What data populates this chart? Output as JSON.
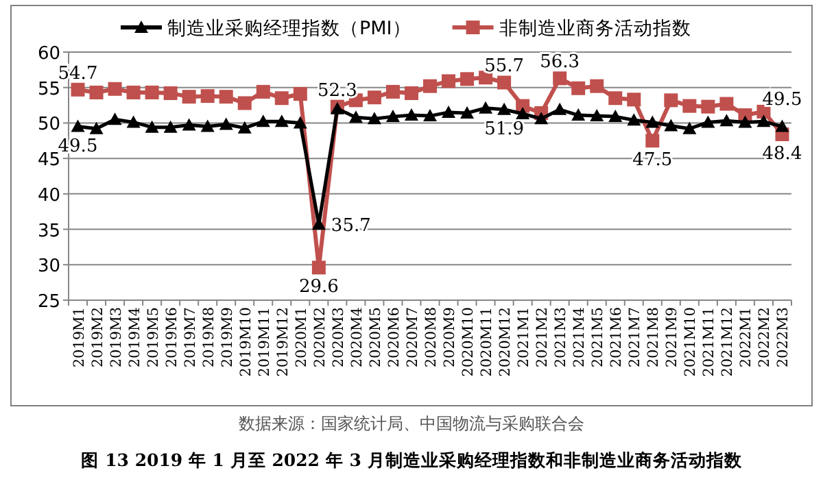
{
  "chart_data": {
    "type": "line",
    "title": "**图 13  2019 年 1 月至 2022 年 3 月制造业采购经理指数和非制造业商务活动指数**",
    "annotations": [
      "数据来源：国家统计局、中国物流与采购联合会"
    ],
    "categories": [
      "2019M1",
      "2019M2",
      "2019M3",
      "2019M4",
      "2019M5",
      "2019M6",
      "2019M7",
      "2019M8",
      "2019M9",
      "2019M10",
      "2019M11",
      "2019M12",
      "2020M1",
      "2020M2",
      "2020M3",
      "2020M4",
      "2020M5",
      "2020M6",
      "2020M7",
      "2020M8",
      "2020M9",
      "2020M10",
      "2020M11",
      "2020M12",
      "2021M1",
      "2021M2",
      "2021M3",
      "2021M4",
      "2021M5",
      "2021M6",
      "2021M7",
      "2021M8",
      "2021M9",
      "2021M10",
      "2021M11",
      "2021M12",
      "2022M1",
      "2022M2",
      "2022M3"
    ],
    "series": [
      {
        "name": "制造业采购经理指数（PMI）",
        "color": "#000000",
        "marker": "triangle",
        "values": [
          49.5,
          49.2,
          50.5,
          50.1,
          49.4,
          49.4,
          49.7,
          49.5,
          49.8,
          49.3,
          50.2,
          50.2,
          50.0,
          35.7,
          52.0,
          50.8,
          50.6,
          50.9,
          51.1,
          51.0,
          51.5,
          51.4,
          52.1,
          51.9,
          51.3,
          50.6,
          51.9,
          51.1,
          51.0,
          50.9,
          50.4,
          50.1,
          49.6,
          49.2,
          50.1,
          50.3,
          50.1,
          50.2,
          49.5
        ],
        "value_labels": [
          "49.5",
          null,
          null,
          null,
          null,
          null,
          null,
          null,
          null,
          null,
          null,
          null,
          null,
          "35.7",
          null,
          null,
          null,
          null,
          null,
          null,
          null,
          null,
          null,
          "51.9",
          null,
          null,
          null,
          null,
          null,
          null,
          null,
          null,
          null,
          null,
          null,
          null,
          null,
          null,
          "49.5"
        ]
      },
      {
        "name": "非制造业商务活动指数",
        "color": "#c0504d",
        "marker": "square",
        "values": [
          54.7,
          54.3,
          54.8,
          54.3,
          54.3,
          54.2,
          53.7,
          53.8,
          53.7,
          52.8,
          54.4,
          53.5,
          54.1,
          29.6,
          52.3,
          53.2,
          53.6,
          54.4,
          54.2,
          55.2,
          55.9,
          56.2,
          56.4,
          55.7,
          52.4,
          51.4,
          56.3,
          54.9,
          55.2,
          53.5,
          53.3,
          47.5,
          53.2,
          52.4,
          52.3,
          52.7,
          51.1,
          51.6,
          48.4
        ],
        "value_labels": [
          "54.7",
          null,
          null,
          null,
          null,
          null,
          null,
          null,
          null,
          null,
          null,
          null,
          null,
          "29.6",
          "52.3",
          null,
          null,
          null,
          null,
          null,
          null,
          null,
          null,
          "55.7",
          null,
          null,
          "56.3",
          null,
          null,
          null,
          null,
          "47.5",
          null,
          null,
          null,
          null,
          null,
          null,
          "48.4"
        ]
      }
    ],
    "ylim": [
      25,
      60
    ],
    "yticks": [
      25,
      30,
      35,
      40,
      45,
      50,
      55,
      60
    ],
    "grid": "y",
    "legend": "top"
  }
}
